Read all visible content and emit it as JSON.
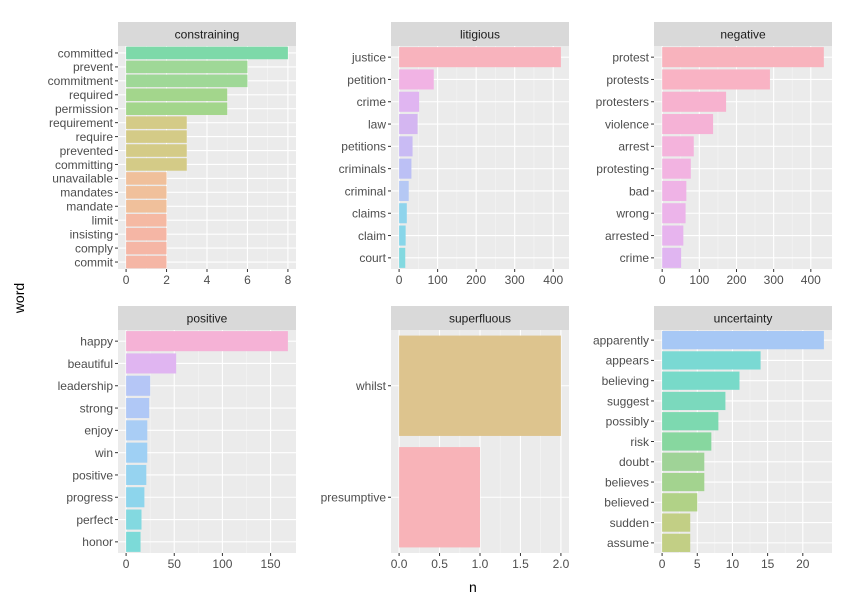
{
  "x_axis_label": "n",
  "y_axis_label": "word",
  "chart_data": [
    {
      "type": "bar",
      "title": "constraining",
      "categories": [
        "committed",
        "prevent",
        "commitment",
        "required",
        "permission",
        "requirement",
        "require",
        "prevented",
        "committing",
        "unavailable",
        "mandates",
        "mandate",
        "limit",
        "insisting",
        "comply",
        "commit"
      ],
      "values": [
        8,
        6,
        6,
        5,
        5,
        3,
        3,
        3,
        3,
        2,
        2,
        2,
        2,
        2,
        2,
        2
      ],
      "colors": [
        "#7dd9a9",
        "#9fd897",
        "#9fd897",
        "#a3d68c",
        "#a3d68c",
        "#d4cb87",
        "#d4cb87",
        "#d4cb87",
        "#d4cb87",
        "#f0c09b",
        "#f0c09b",
        "#f0c09b",
        "#f5b9a3",
        "#f5b6a5",
        "#f5b6a5",
        "#f5b6a5"
      ],
      "xlim": [
        -0.4,
        8.4
      ],
      "xticks": [
        0,
        2,
        4,
        6,
        8
      ],
      "xtick_labels": [
        "0",
        "2",
        "4",
        "6",
        "8"
      ]
    },
    {
      "type": "bar",
      "title": "litigious",
      "categories": [
        "justice",
        "petition",
        "crime",
        "law",
        "petitions",
        "criminals",
        "criminal",
        "claims",
        "claim",
        "court"
      ],
      "values": [
        420,
        90,
        52,
        48,
        35,
        32,
        25,
        20,
        17,
        16
      ],
      "colors": [
        "#f8b3bd",
        "#f1b3e4",
        "#e0b5f1",
        "#d4b6f1",
        "#c9bbf4",
        "#bcc0f5",
        "#b5c8f4",
        "#8fd4ec",
        "#88d6e9",
        "#83d9e0"
      ],
      "xlim": [
        -21,
        441
      ],
      "xticks": [
        0,
        100,
        200,
        300,
        400
      ],
      "xtick_labels": [
        "0",
        "100",
        "200",
        "300",
        "400"
      ]
    },
    {
      "type": "bar",
      "title": "negative",
      "categories": [
        "protest",
        "protests",
        "protesters",
        "violence",
        "arrest",
        "protesting",
        "bad",
        "wrong",
        "arrested",
        "crime"
      ],
      "values": [
        435,
        290,
        172,
        137,
        85,
        77,
        65,
        63,
        57,
        51
      ],
      "colors": [
        "#f8b3bd",
        "#f9b3c4",
        "#f7b2cf",
        "#f5b2d6",
        "#f4b3dc",
        "#f2b3e1",
        "#efb3e6",
        "#ecb4ea",
        "#e7b4ee",
        "#e0b5f1"
      ],
      "xlim": [
        -22,
        457
      ],
      "xticks": [
        0,
        100,
        200,
        300,
        400
      ],
      "xtick_labels": [
        "0",
        "100",
        "200",
        "300",
        "400"
      ]
    },
    {
      "type": "bar",
      "title": "positive",
      "categories": [
        "happy",
        "beautiful",
        "leadership",
        "strong",
        "enjoy",
        "win",
        "positive",
        "progress",
        "perfect",
        "honor"
      ],
      "values": [
        168,
        52,
        25,
        24,
        22,
        22,
        21,
        19,
        16,
        15
      ],
      "colors": [
        "#f5b2d6",
        "#e0b5f1",
        "#b5c6f6",
        "#b0c8f6",
        "#a9cdf5",
        "#9fd0f4",
        "#96d3f0",
        "#8dd5ec",
        "#83d9e0",
        "#7cdad8"
      ],
      "xlim": [
        -8.4,
        176.4
      ],
      "xticks": [
        0,
        50,
        100,
        150
      ],
      "xtick_labels": [
        "0",
        "50",
        "100",
        "150"
      ]
    },
    {
      "type": "bar",
      "title": "superfluous",
      "categories": [
        "whilst",
        "presumptive"
      ],
      "values": [
        2,
        1
      ],
      "colors": [
        "#ddc48e",
        "#f8b3b8"
      ],
      "xlim": [
        -0.1,
        2.1
      ],
      "xticks": [
        0,
        0.5,
        1,
        1.5,
        2
      ],
      "xtick_labels": [
        "0.0",
        "0.5",
        "1.0",
        "1.5",
        "2.0"
      ]
    },
    {
      "type": "bar",
      "title": "uncertainty",
      "categories": [
        "apparently",
        "appears",
        "believing",
        "suggest",
        "possibly",
        "risk",
        "doubt",
        "believes",
        "believed",
        "sudden",
        "assume"
      ],
      "values": [
        23,
        14,
        11,
        9,
        8,
        7,
        6,
        6,
        5,
        4,
        4
      ],
      "colors": [
        "#a7c8f5",
        "#7ad9d3",
        "#78dac9",
        "#7bd9bd",
        "#7dd9b0",
        "#87d79f",
        "#9fd397",
        "#a3d38f",
        "#b1d287",
        "#c2cf85",
        "#c2cf85"
      ],
      "xlim": [
        -1.15,
        24.15
      ],
      "xticks": [
        0,
        5,
        10,
        15,
        20
      ],
      "xtick_labels": [
        "0",
        "5",
        "10",
        "15",
        "20"
      ]
    }
  ]
}
